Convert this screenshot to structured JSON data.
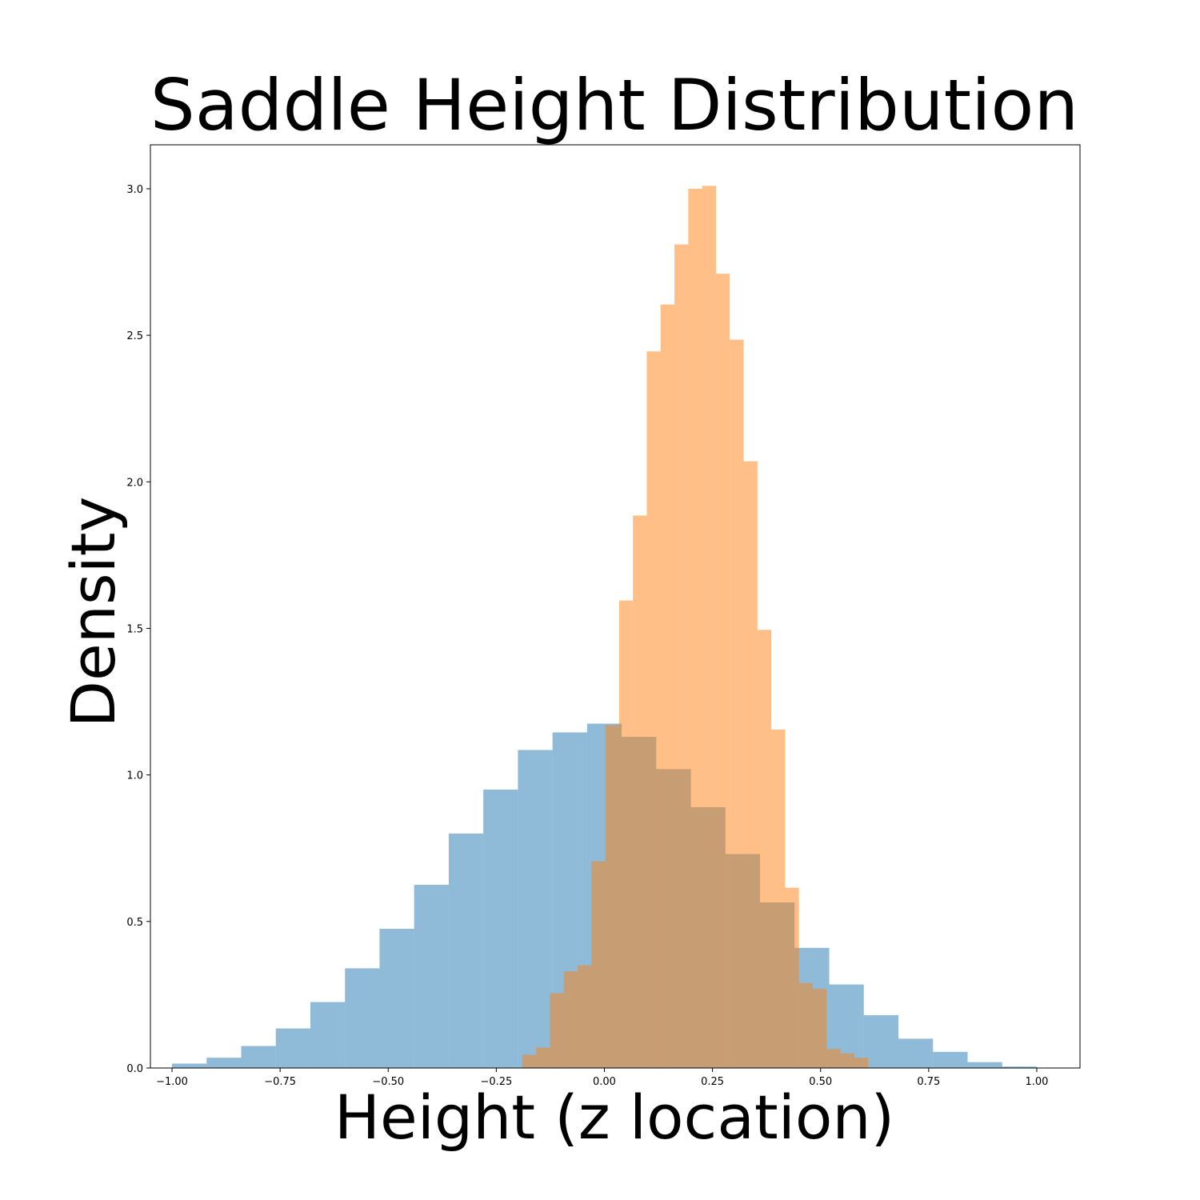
{
  "chart_data": {
    "type": "bar",
    "title": "Saddle Height Distribution",
    "xlabel": "Height (z location)",
    "ylabel": "Density",
    "xlim": [
      -1.05,
      1.1
    ],
    "ylim": [
      0,
      3.15
    ],
    "xticks": [
      -1.0,
      -0.75,
      -0.5,
      -0.25,
      0.0,
      0.25,
      0.5,
      0.75,
      1.0
    ],
    "xtick_labels": [
      "−1.00",
      "−0.75",
      "−0.50",
      "−0.25",
      "0.00",
      "0.25",
      "0.50",
      "0.75",
      "1.00"
    ],
    "yticks": [
      0.0,
      0.5,
      1.0,
      1.5,
      2.0,
      2.5,
      3.0
    ],
    "ytick_labels": [
      "0.0",
      "0.5",
      "1.0",
      "1.5",
      "2.0",
      "2.5",
      "3.0"
    ],
    "grid": false,
    "series": [
      {
        "color": "#1f77b4",
        "alpha": 0.5,
        "bin_edges": [
          -1.0,
          -0.92,
          -0.84,
          -0.76,
          -0.68,
          -0.6,
          -0.52,
          -0.44,
          -0.36,
          -0.28,
          -0.2,
          -0.12,
          -0.04,
          0.04,
          0.12,
          0.2,
          0.28,
          0.36,
          0.44,
          0.52,
          0.6,
          0.68,
          0.76,
          0.84,
          0.92,
          1.0
        ],
        "values": [
          0.015,
          0.035,
          0.075,
          0.135,
          0.225,
          0.34,
          0.475,
          0.625,
          0.8,
          0.95,
          1.085,
          1.145,
          1.175,
          1.13,
          1.02,
          0.89,
          0.73,
          0.565,
          0.41,
          0.285,
          0.18,
          0.1,
          0.055,
          0.02,
          0.005
        ]
      },
      {
        "color": "#ff7f0e",
        "alpha": 0.5,
        "bin_edges": [
          -0.19,
          -0.158,
          -0.126,
          -0.094,
          -0.062,
          -0.03,
          0.002,
          0.034,
          0.066,
          0.098,
          0.13,
          0.162,
          0.194,
          0.226,
          0.258,
          0.29,
          0.322,
          0.354,
          0.386,
          0.418,
          0.45,
          0.482,
          0.514,
          0.546,
          0.578,
          0.61
        ],
        "values": [
          0.045,
          0.07,
          0.255,
          0.33,
          0.35,
          0.705,
          1.17,
          1.595,
          1.885,
          2.445,
          2.605,
          2.81,
          3.0,
          3.01,
          2.71,
          2.485,
          2.07,
          1.495,
          1.155,
          0.615,
          0.29,
          0.27,
          0.065,
          0.05,
          0.035
        ]
      }
    ]
  }
}
